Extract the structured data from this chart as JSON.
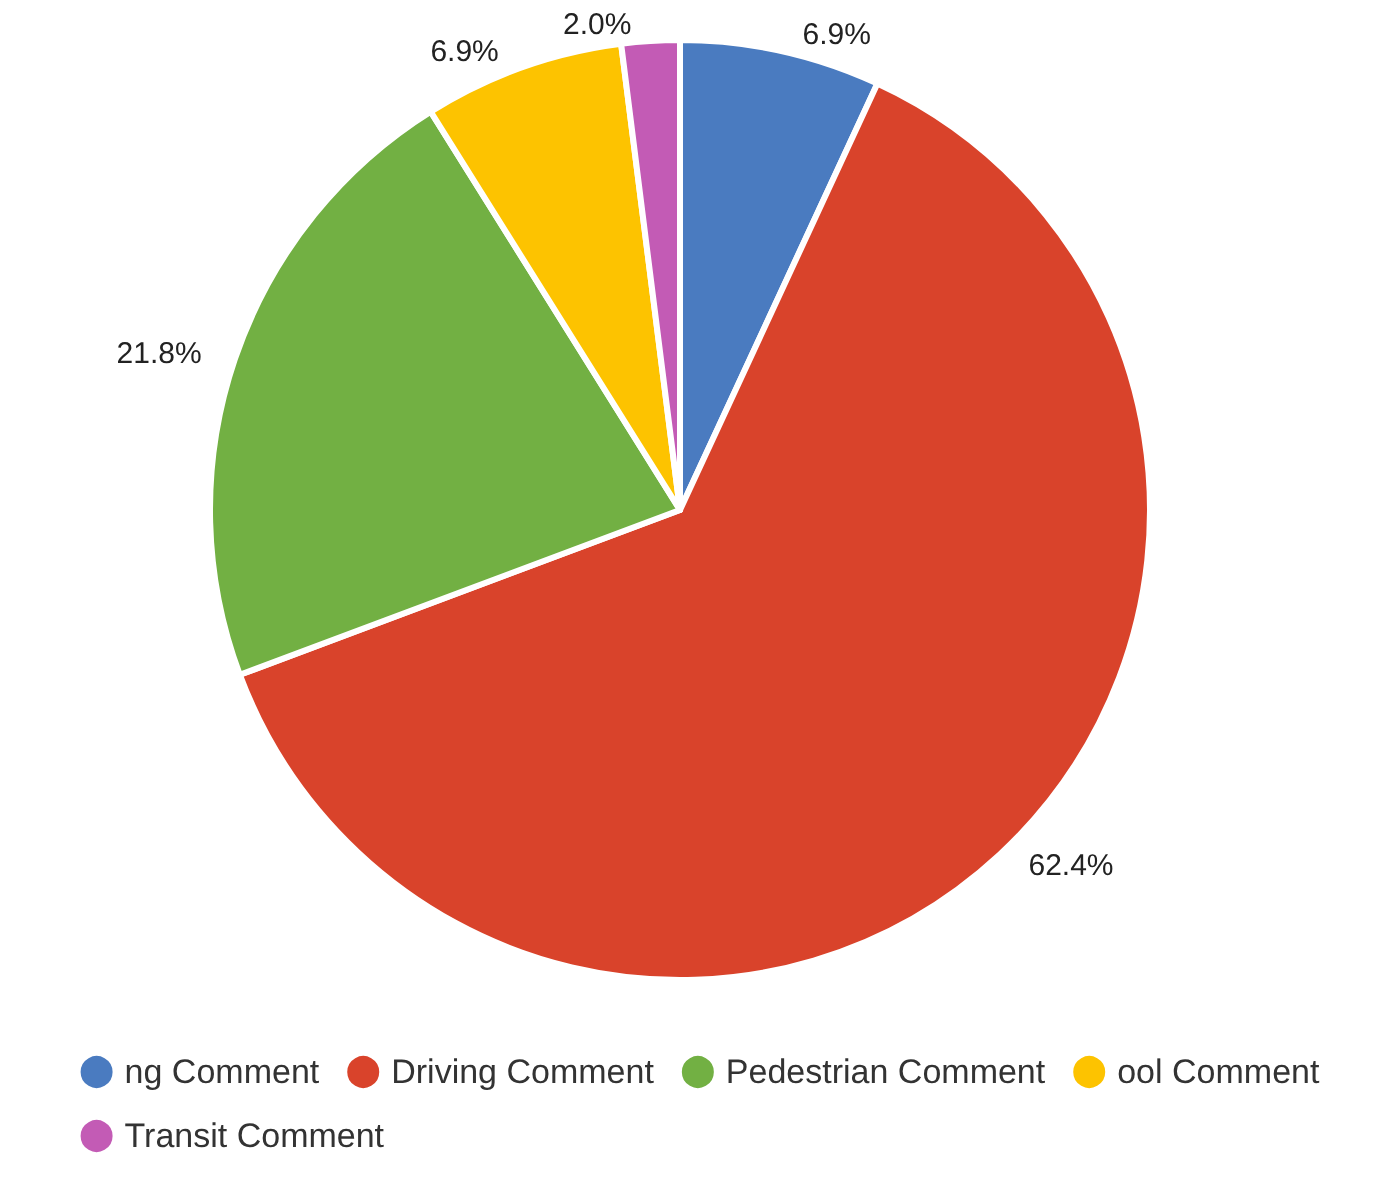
{
  "chart_data": {
    "type": "pie",
    "categories": [
      "ng Comment",
      "Driving Comment",
      "Pedestrian Comment",
      "ool Comment",
      "Transit Comment"
    ],
    "values": [
      6.9,
      62.4,
      21.8,
      6.9,
      2.0
    ],
    "colors": [
      "#4a7bc0",
      "#d9432b",
      "#72b043",
      "#fdc300",
      "#c35bb5"
    ],
    "value_labels": [
      "6.9%",
      "62.4%",
      "21.8%",
      "6.9%",
      "2.0%"
    ],
    "legend": "bottom"
  }
}
